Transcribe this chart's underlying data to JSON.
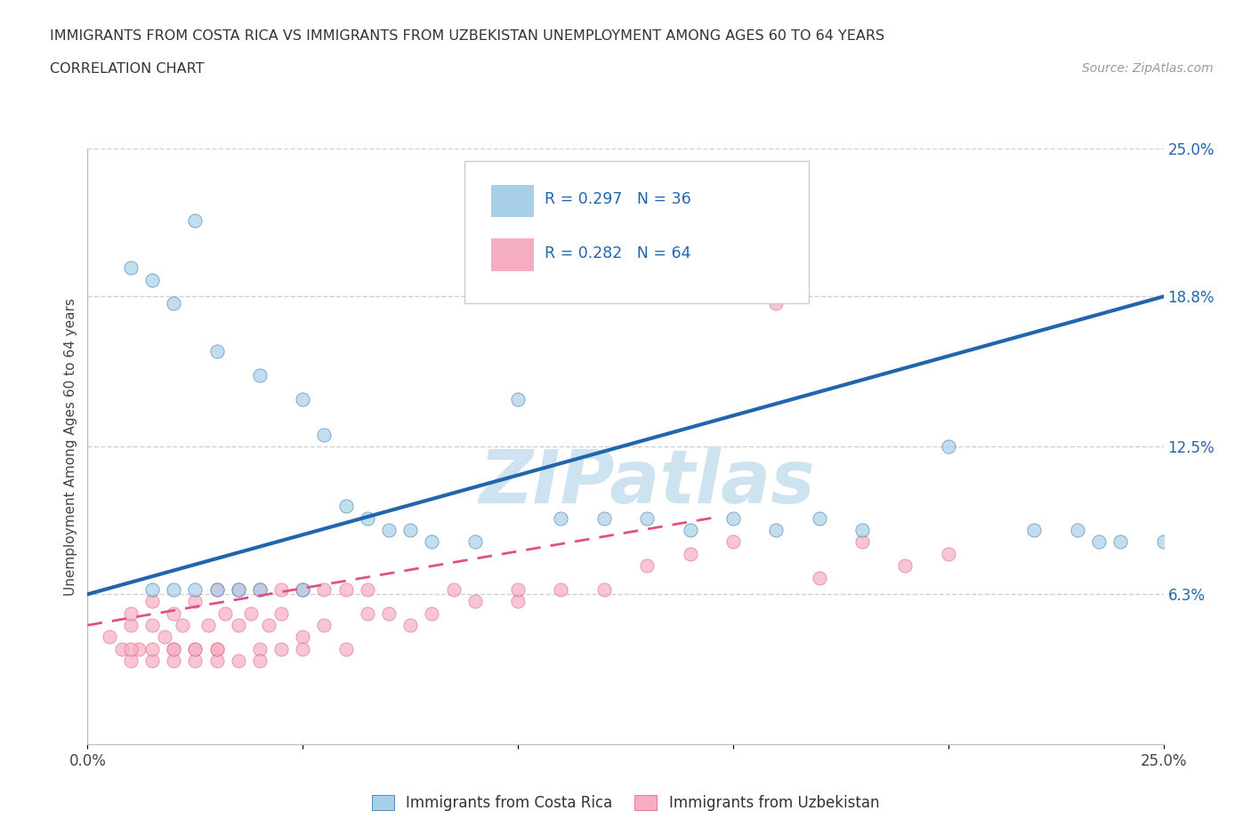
{
  "title_line1": "IMMIGRANTS FROM COSTA RICA VS IMMIGRANTS FROM UZBEKISTAN UNEMPLOYMENT AMONG AGES 60 TO 64 YEARS",
  "title_line2": "CORRELATION CHART",
  "source_text": "Source: ZipAtlas.com",
  "ylabel": "Unemployment Among Ages 60 to 64 years",
  "xlim": [
    0.0,
    0.25
  ],
  "ylim": [
    0.0,
    0.25
  ],
  "ytick_labels_right": [
    "25.0%",
    "18.8%",
    "12.5%",
    "6.3%"
  ],
  "yticks_right": [
    0.25,
    0.188,
    0.125,
    0.063
  ],
  "R_costa_rica": 0.297,
  "N_costa_rica": 36,
  "R_uzbekistan": 0.282,
  "N_uzbekistan": 64,
  "color_costa_rica": "#a8cfe8",
  "color_uzbekistan": "#f5aec0",
  "color_trend_costa_rica": "#2166ac",
  "color_trend_uzbekistan": "#e05080",
  "legend_text_color": "#2166ac",
  "watermark_color": "#cde3f0",
  "background_color": "#ffffff",
  "grid_color": "#d0d0d0",
  "cr_trend_x0": 0.0,
  "cr_trend_y0": 0.063,
  "cr_trend_x1": 0.25,
  "cr_trend_y1": 0.188,
  "uz_trend_x0": 0.0,
  "uz_trend_y0": 0.05,
  "uz_trend_x1": 0.145,
  "uz_trend_y1": 0.095,
  "costa_rica_x": [
    0.01,
    0.015,
    0.02,
    0.025,
    0.03,
    0.04,
    0.05,
    0.055,
    0.06,
    0.065,
    0.07,
    0.075,
    0.08,
    0.09,
    0.1,
    0.11,
    0.12,
    0.13,
    0.14,
    0.15,
    0.16,
    0.17,
    0.18,
    0.2,
    0.22,
    0.23,
    0.235,
    0.24,
    0.25,
    0.015,
    0.02,
    0.025,
    0.03,
    0.035,
    0.04,
    0.05
  ],
  "costa_rica_y": [
    0.2,
    0.195,
    0.185,
    0.22,
    0.165,
    0.155,
    0.145,
    0.13,
    0.1,
    0.095,
    0.09,
    0.09,
    0.085,
    0.085,
    0.145,
    0.095,
    0.095,
    0.095,
    0.09,
    0.095,
    0.09,
    0.095,
    0.09,
    0.125,
    0.09,
    0.09,
    0.085,
    0.085,
    0.085,
    0.065,
    0.065,
    0.065,
    0.065,
    0.065,
    0.065,
    0.065
  ],
  "uzbekistan_x": [
    0.005,
    0.008,
    0.01,
    0.01,
    0.012,
    0.015,
    0.015,
    0.018,
    0.02,
    0.02,
    0.022,
    0.025,
    0.025,
    0.028,
    0.03,
    0.03,
    0.032,
    0.035,
    0.035,
    0.038,
    0.04,
    0.04,
    0.042,
    0.045,
    0.045,
    0.05,
    0.05,
    0.055,
    0.055,
    0.06,
    0.06,
    0.065,
    0.065,
    0.07,
    0.075,
    0.08,
    0.085,
    0.09,
    0.1,
    0.1,
    0.11,
    0.12,
    0.13,
    0.14,
    0.15,
    0.16,
    0.17,
    0.18,
    0.19,
    0.2,
    0.01,
    0.01,
    0.015,
    0.015,
    0.02,
    0.02,
    0.025,
    0.025,
    0.03,
    0.03,
    0.035,
    0.04,
    0.045,
    0.05
  ],
  "uzbekistan_y": [
    0.045,
    0.04,
    0.05,
    0.055,
    0.04,
    0.05,
    0.06,
    0.045,
    0.04,
    0.055,
    0.05,
    0.04,
    0.06,
    0.05,
    0.04,
    0.065,
    0.055,
    0.05,
    0.065,
    0.055,
    0.04,
    0.065,
    0.05,
    0.055,
    0.065,
    0.045,
    0.065,
    0.05,
    0.065,
    0.04,
    0.065,
    0.055,
    0.065,
    0.055,
    0.05,
    0.055,
    0.065,
    0.06,
    0.06,
    0.065,
    0.065,
    0.065,
    0.075,
    0.08,
    0.085,
    0.185,
    0.07,
    0.085,
    0.075,
    0.08,
    0.035,
    0.04,
    0.035,
    0.04,
    0.035,
    0.04,
    0.035,
    0.04,
    0.035,
    0.04,
    0.035,
    0.035,
    0.04,
    0.04
  ]
}
